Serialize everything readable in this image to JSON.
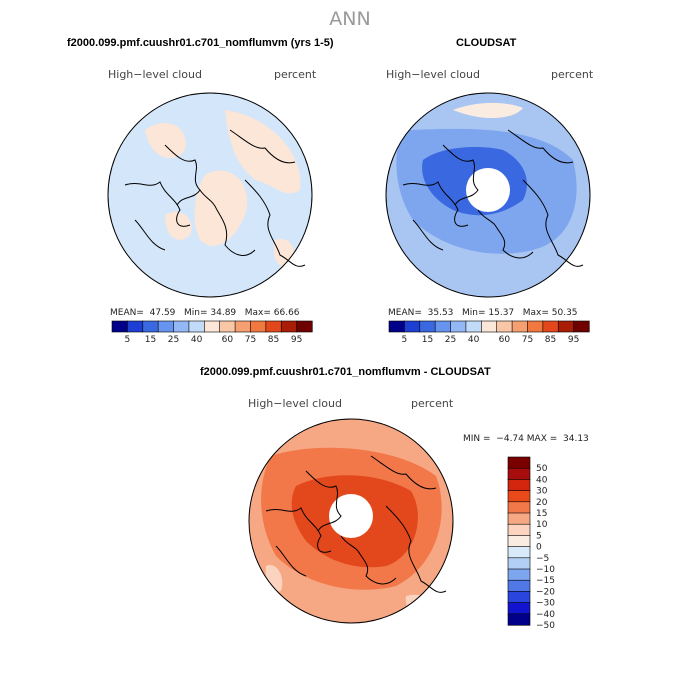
{
  "figure": {
    "title": "ANN"
  },
  "colors": {
    "scale_a": [
      "#00008b",
      "#1d3fd3",
      "#3a68e0",
      "#6794ee",
      "#93b8f5",
      "#c2dbf9",
      "#fbe6d8",
      "#f9c7a6",
      "#f6a071",
      "#f1783f",
      "#e2481b",
      "#a91c06",
      "#6e0000"
    ],
    "scale_b": [
      "#7a0000",
      "#a80d0d",
      "#d4250f",
      "#ea4a1a",
      "#f2784a",
      "#f6a783",
      "#fbd3bf",
      "#fbece2",
      "#d9ebfa",
      "#b3cff5",
      "#7ea6ee",
      "#5078e6",
      "#2a44de",
      "#1314d0",
      "#00008b"
    ],
    "plot1_base": "#d4e6f9",
    "plot1_patch": "#fbe6d8",
    "plot2_base": "#a9c6f2",
    "plot2_mid": "#7ea6ee",
    "plot2_dark": "#3a68e0",
    "plot3_base": "#f6a783",
    "plot3_mid": "#f2784a",
    "plot3_dark": "#e2481b"
  },
  "plot1": {
    "title": "f2000.099.pmf.cuushr01.c701_nomflumvm (yrs 1-5)",
    "left_label": "High−level cloud",
    "right_label": "percent",
    "mean_label": "MEAN=",
    "mean_value": "47.59",
    "min_label": "Min=",
    "min_value": "34.89",
    "max_label": "Max=",
    "max_value": "66.66",
    "colorbar_ticks": [
      "5",
      "15",
      "25",
      "40",
      "60",
      "75",
      "85",
      "95"
    ]
  },
  "plot2": {
    "title": "CLOUDSAT",
    "left_label": "High−level cloud",
    "right_label": "percent",
    "mean_label": "MEAN=",
    "mean_value": "35.53",
    "min_label": "Min=",
    "min_value": "15.37",
    "max_label": "Max=",
    "max_value": "50.35",
    "colorbar_ticks": [
      "5",
      "15",
      "25",
      "40",
      "60",
      "75",
      "85",
      "95"
    ]
  },
  "plot3": {
    "title": "f2000.099.pmf.cuushr01.c701_nomflumvm - CLOUDSAT",
    "left_label": "High−level cloud",
    "right_label": "percent",
    "min_label": "MIN =",
    "min_value": "−4.74",
    "max_label": "MAX =",
    "max_value": "34.13",
    "colorbar_ticks": [
      "50",
      "40",
      "30",
      "20",
      "15",
      "10",
      "5",
      "0",
      "−5",
      "−10",
      "−15",
      "−20",
      "−30",
      "−40",
      "−50"
    ]
  }
}
